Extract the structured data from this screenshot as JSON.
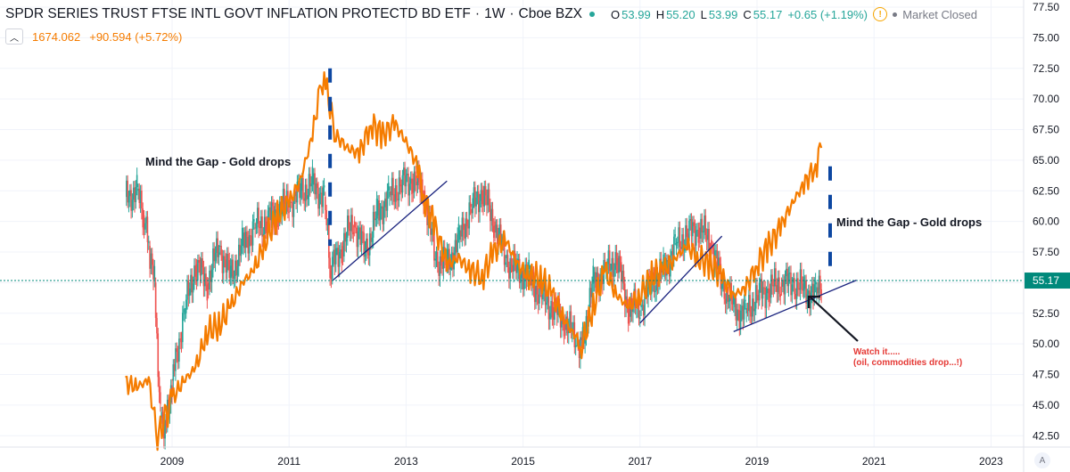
{
  "header": {
    "title": "SPDR SERIES TRUST FTSE INTL GOVT INFLATION PROTECTD BD ETF",
    "interval": "1W",
    "exchange": "Cboe BZX",
    "open_label": "O",
    "open": "53.99",
    "high_label": "H",
    "high": "55.20",
    "low_label": "L",
    "low": "53.99",
    "close_label": "C",
    "close": "55.17",
    "change": "+0.65 (+1.19%)"
  },
  "overlay_symbol": {
    "value": "1674.062",
    "change": "+90.594 (+5.72%)"
  },
  "status": {
    "market": "Market Closed",
    "warn_icon": "!"
  },
  "axis_button": "A",
  "colors": {
    "up": "#26a69a",
    "down": "#ef5350",
    "overlay": "#f57c00",
    "trendline": "#1a237e",
    "gap_marker": "#0d47a1",
    "price_line": "#00897b",
    "note": "#e53935"
  },
  "chart_data": {
    "type": "line",
    "x_ticks": [
      "2009",
      "2011",
      "2013",
      "2015",
      "2017",
      "2019",
      "2021",
      "2023"
    ],
    "y_ticks": [
      "77.50",
      "75.00",
      "72.50",
      "70.00",
      "67.50",
      "65.00",
      "62.50",
      "60.00",
      "57.50",
      "55.00",
      "52.50",
      "50.00",
      "47.50",
      "45.00",
      "42.50"
    ],
    "ylim": [
      41,
      78
    ],
    "last_price": "55.17",
    "series": [
      {
        "name": "SPDR SERIES TRUST FTSE INTL GOVT INFLATION PROTECTD BD ETF",
        "style": "candles",
        "color": "#26a69a",
        "x": [
          2008.2,
          2008.4,
          2008.5,
          2008.6,
          2008.7,
          2008.8,
          2008.9,
          2009.0,
          2009.2,
          2009.4,
          2009.6,
          2009.8,
          2010.0,
          2010.2,
          2010.4,
          2010.6,
          2010.8,
          2011.0,
          2011.2,
          2011.4,
          2011.6,
          2011.7,
          2011.9,
          2012.1,
          2012.3,
          2012.5,
          2012.7,
          2012.9,
          2013.1,
          2013.3,
          2013.5,
          2013.7,
          2013.9,
          2014.1,
          2014.3,
          2014.5,
          2014.7,
          2014.9,
          2015.1,
          2015.3,
          2015.5,
          2015.7,
          2015.9,
          2016.0,
          2016.2,
          2016.4,
          2016.6,
          2016.8,
          2017.0,
          2017.2,
          2017.4,
          2017.6,
          2017.8,
          2018.0,
          2018.2,
          2018.4,
          2018.6,
          2018.8,
          2019.0,
          2019.2,
          2019.4,
          2019.6,
          2019.8,
          2020.0,
          2020.1
        ],
        "values": [
          62.0,
          62.5,
          60.5,
          58.0,
          55.0,
          44.0,
          43.5,
          47.0,
          52.5,
          56.5,
          55.0,
          58.0,
          55.5,
          58.0,
          59.5,
          60.0,
          61.0,
          61.5,
          62.5,
          63.0,
          62.0,
          56.0,
          58.0,
          60.0,
          57.5,
          60.5,
          62.0,
          63.0,
          63.5,
          62.5,
          57.0,
          56.5,
          58.5,
          61.0,
          62.5,
          60.0,
          57.0,
          56.0,
          55.5,
          54.0,
          53.0,
          52.0,
          50.5,
          50.0,
          55.0,
          56.0,
          57.0,
          53.0,
          53.0,
          55.0,
          56.0,
          58.0,
          59.0,
          59.5,
          58.5,
          55.0,
          53.0,
          52.5,
          54.0,
          54.5,
          55.0,
          55.0,
          54.5,
          54.0,
          55.2
        ]
      },
      {
        "name": "",
        "style": "line",
        "color": "#f57c00",
        "x": [
          2008.2,
          2008.4,
          2008.6,
          2008.75,
          2008.9,
          2009.0,
          2009.2,
          2009.4,
          2009.6,
          2009.8,
          2010.0,
          2010.2,
          2010.4,
          2010.6,
          2010.8,
          2011.0,
          2011.2,
          2011.4,
          2011.55,
          2011.65,
          2011.8,
          2012.0,
          2012.2,
          2012.4,
          2012.6,
          2012.8,
          2013.0,
          2013.2,
          2013.3,
          2013.5,
          2013.7,
          2013.9,
          2014.1,
          2014.3,
          2014.5,
          2014.7,
          2014.9,
          2015.1,
          2015.3,
          2015.5,
          2015.7,
          2015.9,
          2016.0,
          2016.2,
          2016.4,
          2016.6,
          2016.8,
          2017.0,
          2017.2,
          2017.4,
          2017.6,
          2017.8,
          2018.0,
          2018.2,
          2018.4,
          2018.6,
          2018.8,
          2019.0,
          2019.2,
          2019.4,
          2019.6,
          2019.8,
          2020.0,
          2020.1
        ],
        "values": [
          46.8,
          46.5,
          47.0,
          42.5,
          44.0,
          45.5,
          47.0,
          48.0,
          51.0,
          51.5,
          53.0,
          55.0,
          56.0,
          58.5,
          60.5,
          61.5,
          63.5,
          67.0,
          71.5,
          70.5,
          67.0,
          66.0,
          65.5,
          68.0,
          67.0,
          68.0,
          66.5,
          64.5,
          62.0,
          59.5,
          56.5,
          57.0,
          56.0,
          55.5,
          57.5,
          58.5,
          56.5,
          55.5,
          55.5,
          54.0,
          52.0,
          50.5,
          49.8,
          53.0,
          56.0,
          54.0,
          53.0,
          54.0,
          55.5,
          56.0,
          57.0,
          58.0,
          57.0,
          56.5,
          55.5,
          54.0,
          54.5,
          56.5,
          58.0,
          59.5,
          61.5,
          63.0,
          64.5,
          66.0
        ]
      }
    ],
    "annotations": [
      "Mind the Gap - Gold drops",
      "Mind the Gap - Gold drops",
      "Watch it.....",
      "(oil, commodities drop...!)"
    ]
  }
}
